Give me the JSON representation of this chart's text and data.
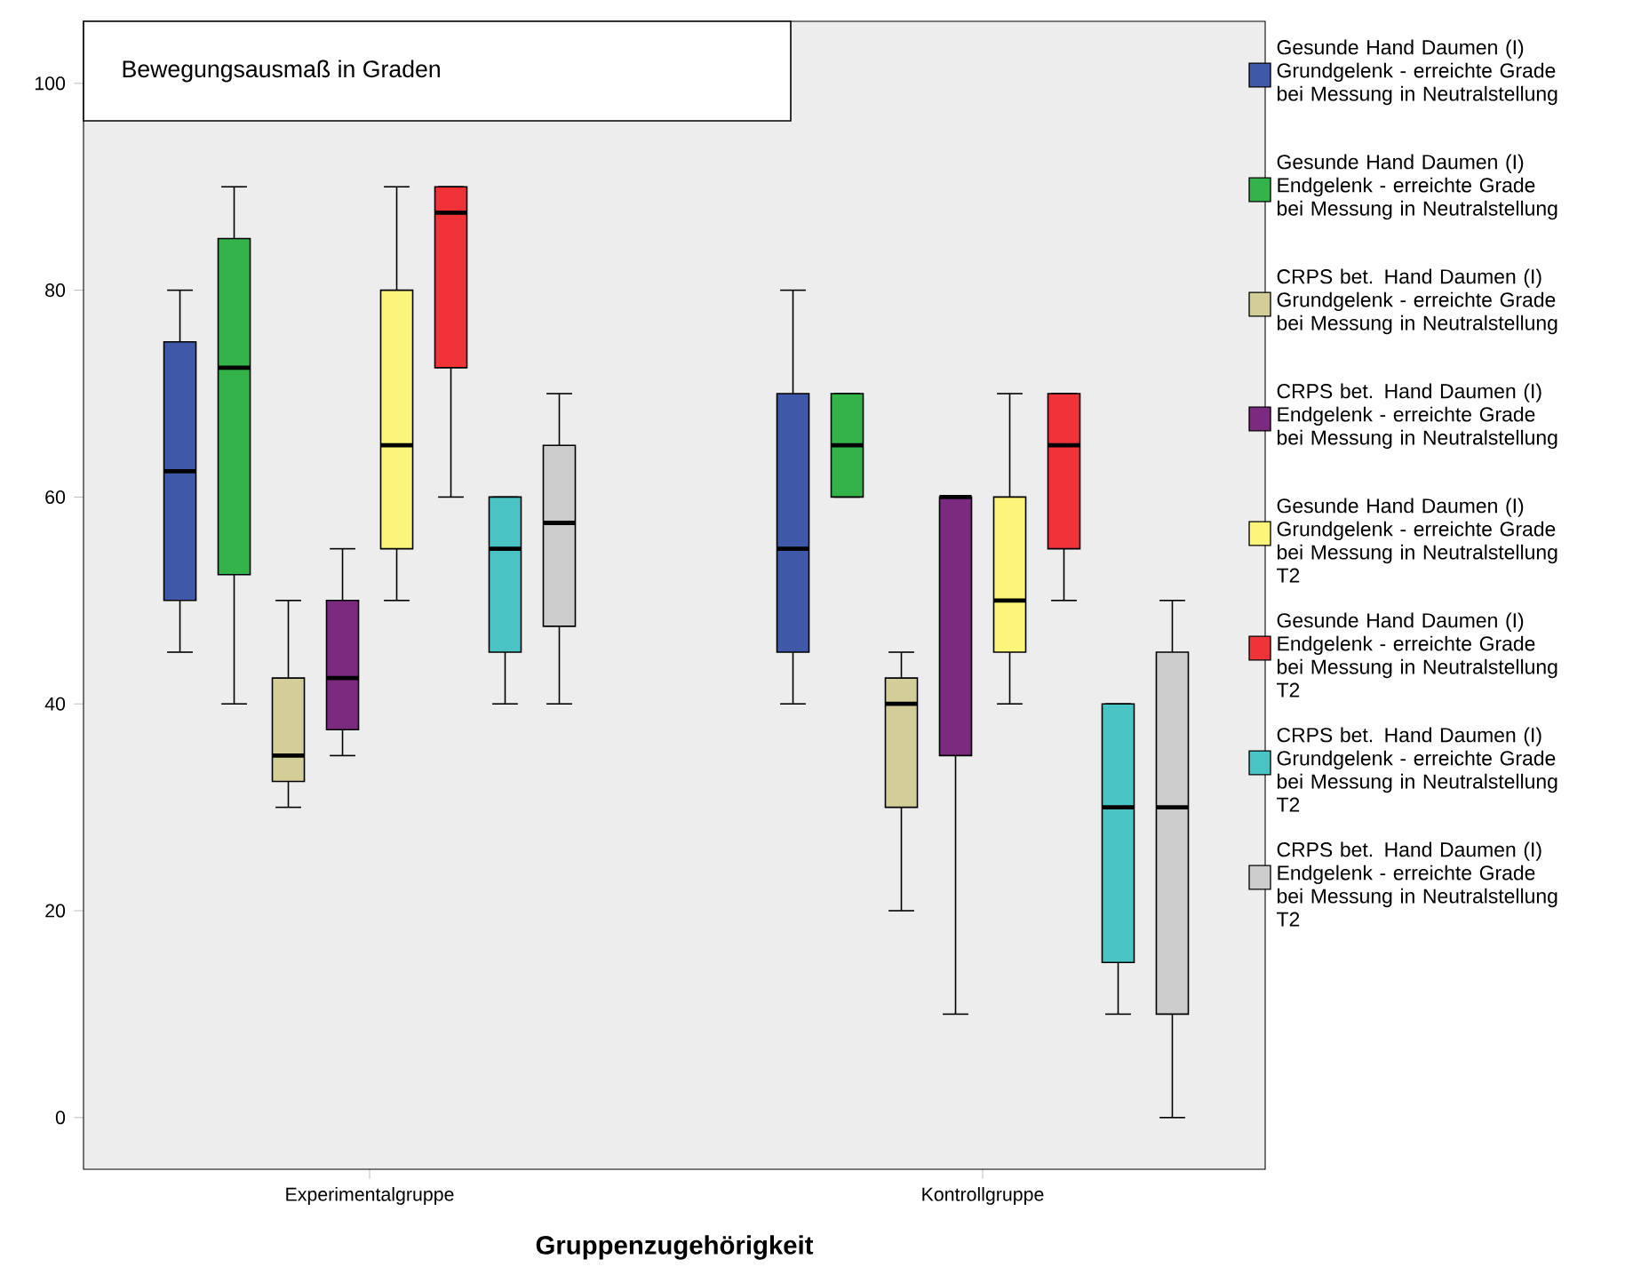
{
  "chart_data": {
    "type": "box",
    "title": "Bewegungsausmaß in Graden",
    "xlabel": "Gruppenzugehörigkeit",
    "categories": [
      "Experimentalgruppe",
      "Kontrollgruppe"
    ],
    "ylim": [
      -5,
      106
    ],
    "yticks": [
      0,
      20,
      40,
      60,
      80,
      100
    ],
    "legend": "right",
    "series": [
      {
        "name": "Gesunde Hand Daumen (I) Grundgelenk - erreichte Grade bei Messung in Neutralstellung",
        "color": "#3f59a8",
        "boxes": [
          {
            "low": 45,
            "q1": 50,
            "median": 62.5,
            "q3": 75,
            "high": 80
          },
          {
            "low": 40,
            "q1": 45,
            "median": 55,
            "q3": 70,
            "high": 80
          }
        ]
      },
      {
        "name": "Gesunde Hand Daumen (I) Endgelenk - erreichte Grade bei Messung in Neutralstellung",
        "color": "#33b34a",
        "boxes": [
          {
            "low": 40,
            "q1": 52.5,
            "median": 72.5,
            "q3": 85,
            "high": 90
          },
          {
            "low": 60,
            "q1": 60,
            "median": 65,
            "q3": 70,
            "high": 70
          }
        ]
      },
      {
        "name": "CRPS bet. Hand Daumen (I) Grundgelenk - erreichte Grade bei Messung in Neutralstellung",
        "color": "#d3ce97",
        "boxes": [
          {
            "low": 30,
            "q1": 32.5,
            "median": 35,
            "q3": 42.5,
            "high": 50
          },
          {
            "low": 20,
            "q1": 30,
            "median": 40,
            "q3": 42.5,
            "high": 45
          }
        ]
      },
      {
        "name": "CRPS bet. Hand Daumen (I) Endgelenk - erreichte Grade bei Messung in Neutralstellung",
        "color": "#7b2a7f",
        "boxes": [
          {
            "low": 35,
            "q1": 37.5,
            "median": 42.5,
            "q3": 50,
            "high": 55
          },
          {
            "low": 10,
            "q1": 35,
            "median": 60,
            "q3": 60,
            "high": 60
          }
        ]
      },
      {
        "name": "Gesunde Hand Daumen (I) Grundgelenk - erreichte Grade bei Messung in Neutralstellung T2",
        "color": "#fbf679",
        "boxes": [
          {
            "low": 50,
            "q1": 55,
            "median": 65,
            "q3": 80,
            "high": 90
          },
          {
            "low": 40,
            "q1": 45,
            "median": 50,
            "q3": 60,
            "high": 70
          }
        ]
      },
      {
        "name": "Gesunde Hand Daumen (I) Endgelenk - erreichte Grade bei Messung in Neutralstellung T2",
        "color": "#ef3339",
        "boxes": [
          {
            "low": 60,
            "q1": 72.5,
            "median": 87.5,
            "q3": 90,
            "high": 90
          },
          {
            "low": 50,
            "q1": 55,
            "median": 65,
            "q3": 70,
            "high": 70
          }
        ]
      },
      {
        "name": "CRPS bet. Hand Daumen (I) Grundgelenk - erreichte Grade bei Messung in Neutralstellung T2",
        "color": "#4ac3c4",
        "boxes": [
          {
            "low": 40,
            "q1": 45,
            "median": 55,
            "q3": 60,
            "high": 60
          },
          {
            "low": 10,
            "q1": 15,
            "median": 30,
            "q3": 40,
            "high": 40
          }
        ]
      },
      {
        "name": "CRPS bet. Hand Daumen (I) Endgelenk - erreichte Grade bei Messung in Neutralstellung T2",
        "color": "#cccccc",
        "boxes": [
          {
            "low": 40,
            "q1": 47.5,
            "median": 57.5,
            "q3": 65,
            "high": 70
          },
          {
            "low": 0,
            "q1": 10,
            "median": 30,
            "q3": 45,
            "high": 50
          }
        ]
      }
    ]
  }
}
